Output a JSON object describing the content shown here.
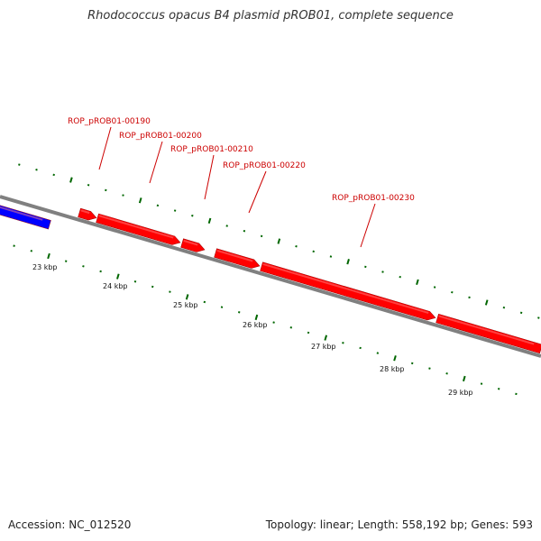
{
  "title": "Rhodococcus opacus B4 plasmid pROB01, complete sequence",
  "footer": {
    "accession": "Accession: NC_012520",
    "summary": "Topology: linear; Length: 558,192 bp; Genes: 593"
  },
  "colors": {
    "gene_forward": "#ff0000",
    "gene_other": "#0000ff",
    "backbone": "#808080",
    "ticks": "#006600",
    "label_text": "#cc0000"
  },
  "kbp_labels": [
    "23 kbp",
    "24 kbp",
    "25 kbp",
    "26 kbp",
    "27 kbp",
    "28 kbp",
    "29 kbp"
  ],
  "genes": [
    {
      "id": "ROP_pROB01-00190",
      "label": "ROP_pROB01-00190",
      "strand": "+"
    },
    {
      "id": "ROP_pROB01-00200",
      "label": "ROP_pROB01-00200",
      "strand": "+"
    },
    {
      "id": "ROP_pROB01-00210",
      "label": "ROP_pROB01-00210",
      "strand": "+"
    },
    {
      "id": "ROP_pROB01-00220",
      "label": "ROP_pROB01-00220",
      "strand": "+"
    },
    {
      "id": "ROP_pROB01-00230",
      "label": "ROP_pROB01-00230",
      "strand": "+"
    }
  ]
}
